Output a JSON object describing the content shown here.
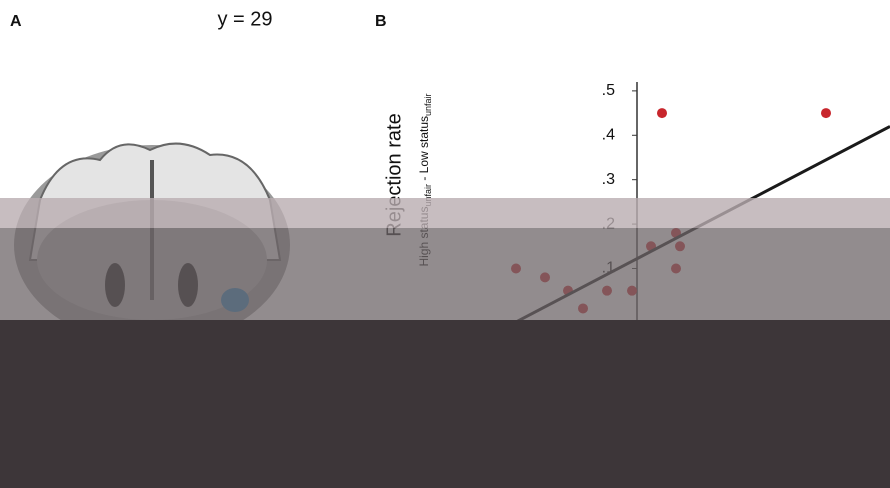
{
  "chart_data": {
    "type": "scatter",
    "panel_a_label": "A",
    "panel_a_title": "y = 29",
    "panel_b_label": "B",
    "ylabel": "Rejection rate",
    "ylabel_sub": [
      "High status",
      "unfair",
      " - Low status",
      "unfair"
    ],
    "x": [
      0.25,
      1.89,
      0.39,
      0.14,
      0.43,
      -1.21,
      0.39,
      -0.92,
      -0.69,
      -0.3,
      -0.05,
      -0.54
    ],
    "values": [
      0.45,
      0.45,
      0.18,
      0.15,
      0.15,
      0.1,
      0.1,
      0.08,
      0.05,
      0.05,
      0.05,
      0.01
    ],
    "color": "#c8262c",
    "fit": {
      "x": [
        -1.97,
        2.53
      ],
      "y": [
        -0.11,
        0.42
      ],
      "color": "#1a1a1a"
    },
    "xlim": [
      -1.97,
      2.53
    ],
    "ylim": [
      -0.23,
      0.52
    ],
    "yticks": [
      {
        "value": 0.1,
        "label": ".1"
      },
      {
        "value": 0.2,
        "label": ".2"
      },
      {
        "value": 0.3,
        "label": ".3"
      },
      {
        "value": 0.4,
        "label": ".4"
      },
      {
        "value": 0.5,
        "label": ".5"
      }
    ]
  }
}
